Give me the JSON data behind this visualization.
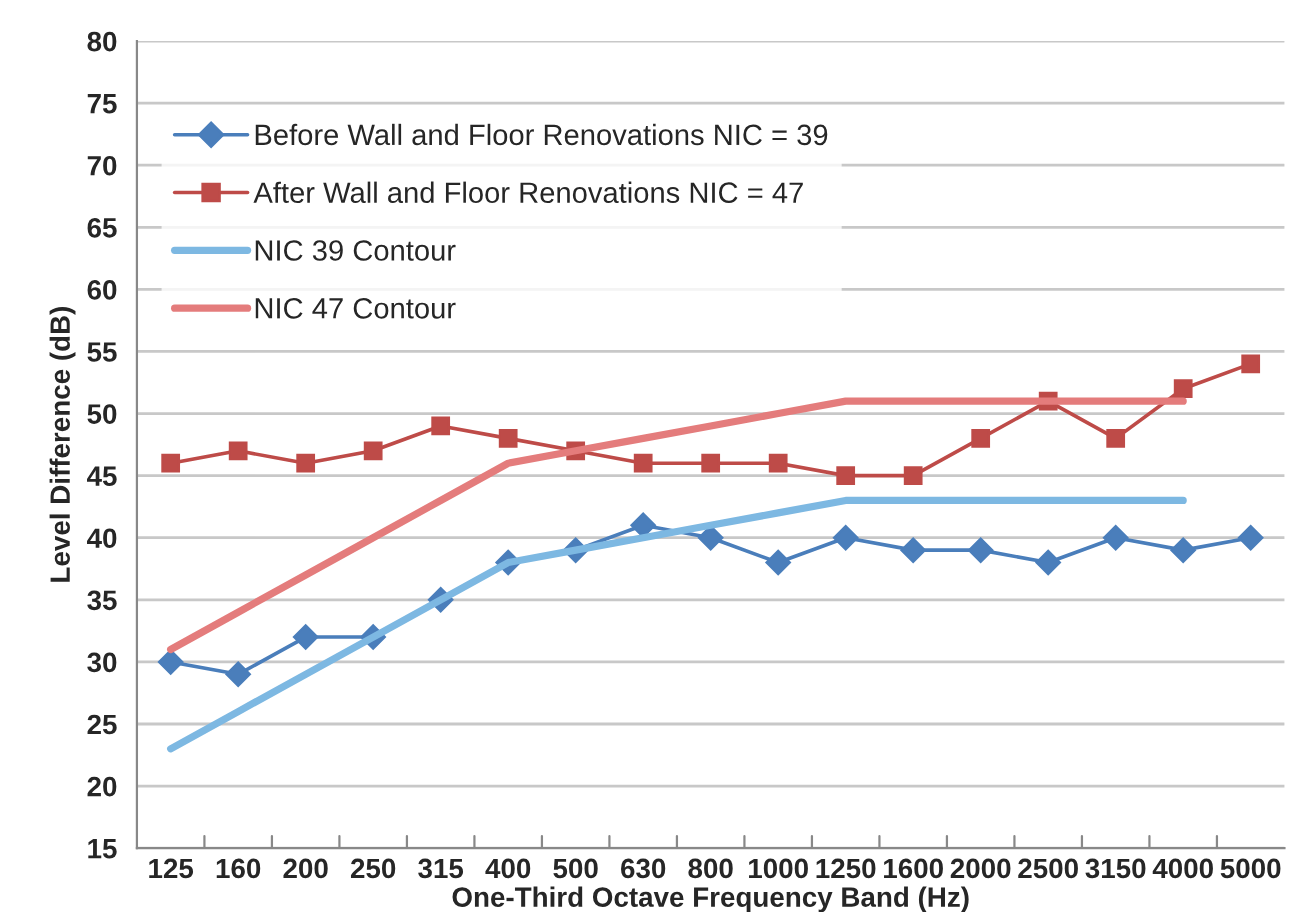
{
  "chart_data": {
    "type": "line",
    "xlabel": "One-Third Octave Frequency Band (Hz)",
    "ylabel": "Level Difference (dB)",
    "categories": [
      "125",
      "160",
      "200",
      "250",
      "315",
      "400",
      "500",
      "630",
      "800",
      "1000",
      "1250",
      "1600",
      "2000",
      "2500",
      "3150",
      "4000",
      "5000"
    ],
    "series": [
      {
        "name": "Before Wall and Floor Renovations NIC = 39",
        "color": "#4a7ebb",
        "marker": "diamond",
        "values": [
          30,
          29,
          32,
          32,
          35,
          38,
          39,
          41,
          40,
          38,
          40,
          39,
          39,
          38,
          40,
          39,
          40
        ]
      },
      {
        "name": "After Wall and Floor Renovations NIC = 47",
        "color": "#be4b48",
        "marker": "square",
        "values": [
          46,
          47,
          46,
          47,
          49,
          48,
          47,
          46,
          46,
          46,
          45,
          45,
          48,
          51,
          48,
          52,
          54
        ]
      },
      {
        "name": "NIC 39 Contour",
        "color": "#7db8e2",
        "marker": "none",
        "values": [
          23,
          26,
          29,
          32,
          35,
          38,
          39,
          40,
          41,
          42,
          43,
          43,
          43,
          43,
          43,
          43,
          null
        ]
      },
      {
        "name": "NIC 47 Contour",
        "color": "#e47c7c",
        "marker": "none",
        "values": [
          31,
          34,
          37,
          40,
          43,
          46,
          47,
          48,
          49,
          50,
          51,
          51,
          51,
          51,
          51,
          51,
          null
        ]
      }
    ],
    "ylim": [
      15,
      80
    ],
    "yticks": [
      15,
      20,
      25,
      30,
      35,
      40,
      45,
      50,
      55,
      60,
      65,
      70,
      75,
      80
    ],
    "grid": "y",
    "legend": "top left"
  }
}
